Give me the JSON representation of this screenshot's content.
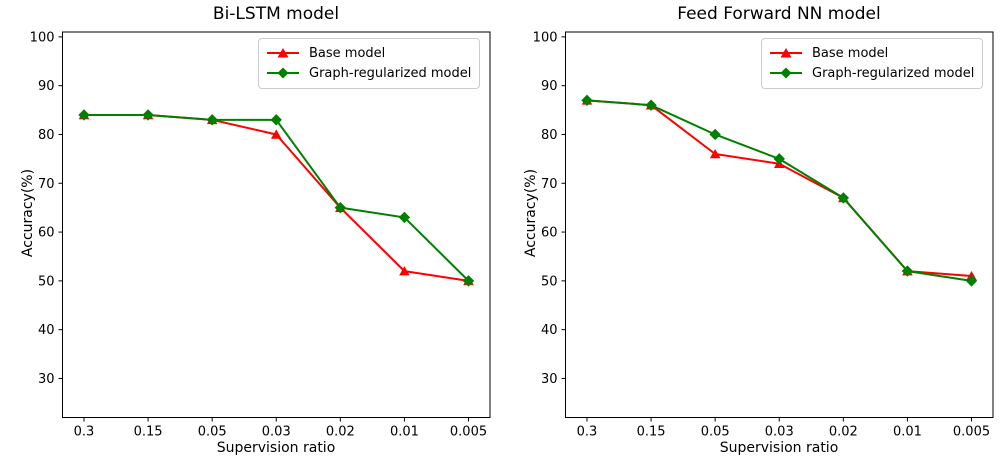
{
  "figure": {
    "background": "#ffffff",
    "axis_color": "#000000",
    "legend_border_color": "#cccccc"
  },
  "chart_data": [
    {
      "type": "line",
      "title": "Bi-LSTM model",
      "xlabel": "Supervision ratio",
      "ylabel": "Accuracy(%)",
      "categories": [
        "0.3",
        "0.15",
        "0.05",
        "0.03",
        "0.02",
        "0.01",
        "0.005"
      ],
      "yticks": [
        30,
        40,
        50,
        60,
        70,
        80,
        90,
        100
      ],
      "ylim": [
        22,
        101
      ],
      "grid": false,
      "legend_position": "upper right",
      "series": [
        {
          "name": "Base model",
          "color": "#ff0000",
          "marker": "triangle",
          "values": [
            84,
            84,
            83,
            80,
            65,
            52,
            50
          ]
        },
        {
          "name": "Graph-regularized model",
          "color": "#008000",
          "marker": "diamond",
          "values": [
            84,
            84,
            83,
            83,
            65,
            63,
            50
          ]
        }
      ]
    },
    {
      "type": "line",
      "title": "Feed Forward NN model",
      "xlabel": "Supervision ratio",
      "ylabel": "Accuracy(%)",
      "categories": [
        "0.3",
        "0.15",
        "0.05",
        "0.03",
        "0.02",
        "0.01",
        "0.005"
      ],
      "yticks": [
        30,
        40,
        50,
        60,
        70,
        80,
        90,
        100
      ],
      "ylim": [
        22,
        101
      ],
      "grid": false,
      "legend_position": "upper right",
      "series": [
        {
          "name": "Base model",
          "color": "#ff0000",
          "marker": "triangle",
          "values": [
            87,
            86,
            76,
            74,
            67,
            52,
            51
          ]
        },
        {
          "name": "Graph-regularized model",
          "color": "#008000",
          "marker": "diamond",
          "values": [
            87,
            86,
            80,
            75,
            67,
            52,
            50
          ]
        }
      ]
    }
  ]
}
